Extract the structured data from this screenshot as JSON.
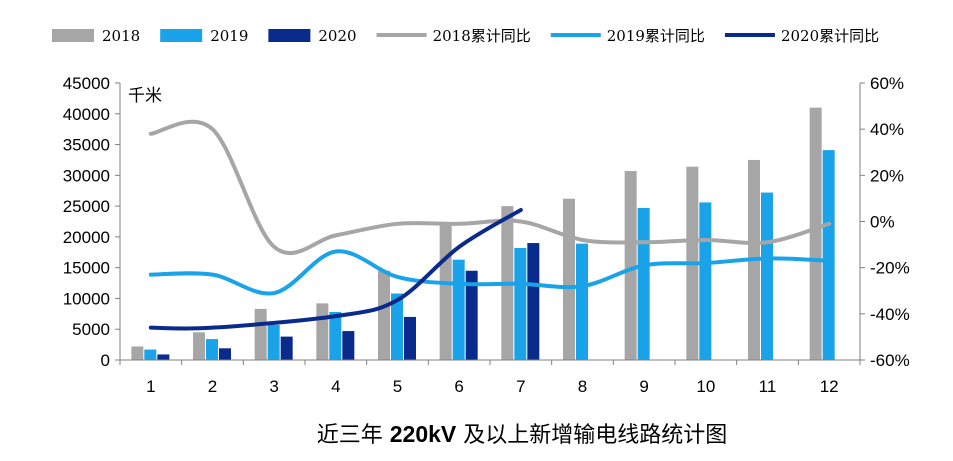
{
  "chart_data": {
    "type": "bar",
    "title": "近三年 220kV 及以上新增输电线路统计图",
    "title_parts": [
      "近三年 ",
      "220kV",
      " 及以上新增输电线路统计图"
    ],
    "unit_label": "千米",
    "categories": [
      "1",
      "2",
      "3",
      "4",
      "5",
      "6",
      "7",
      "8",
      "9",
      "10",
      "11",
      "12"
    ],
    "bar_series": [
      {
        "name": "2018",
        "color": "#a6a6a6",
        "values": [
          2200,
          4500,
          8300,
          9200,
          14500,
          22300,
          25000,
          26200,
          30700,
          31400,
          32500,
          41000
        ]
      },
      {
        "name": "2019",
        "color": "#1aa3e8",
        "values": [
          1700,
          3400,
          5700,
          7800,
          10800,
          16300,
          18200,
          18900,
          24700,
          25600,
          27200,
          34100
        ]
      },
      {
        "name": "2020",
        "color": "#0a2a8c",
        "values": [
          900,
          1900,
          3800,
          4700,
          7000,
          14500,
          19000,
          null,
          null,
          null,
          null,
          null
        ]
      }
    ],
    "line_series": [
      {
        "name": "2018累计同比",
        "color": "#a6a6a6",
        "values": [
          38,
          40,
          -11,
          -6,
          -1,
          -1,
          0,
          -8,
          -9,
          -8,
          -9,
          -1
        ]
      },
      {
        "name": "2019累计同比",
        "color": "#1aa3e8",
        "values": [
          -23,
          -23,
          -31,
          -13,
          -24,
          -27,
          -27,
          -28,
          -19,
          -18,
          -16,
          -17
        ]
      },
      {
        "name": "2020累计同比",
        "color": "#0a2a8c",
        "values": [
          -46,
          -46,
          null,
          -41,
          -34,
          -11,
          5,
          null,
          null,
          null,
          null,
          null
        ]
      }
    ],
    "y_left": {
      "ylim": [
        0,
        45000
      ],
      "ticks": [
        "0",
        "5000",
        "10000",
        "15000",
        "20000",
        "25000",
        "30000",
        "35000",
        "40000",
        "45000"
      ]
    },
    "y_right": {
      "ylim": [
        -60,
        60
      ],
      "ticks": [
        "-60%",
        "-40%",
        "-20%",
        "0%",
        "20%",
        "40%",
        "60%"
      ]
    },
    "legend_position": "top",
    "grid": false
  }
}
